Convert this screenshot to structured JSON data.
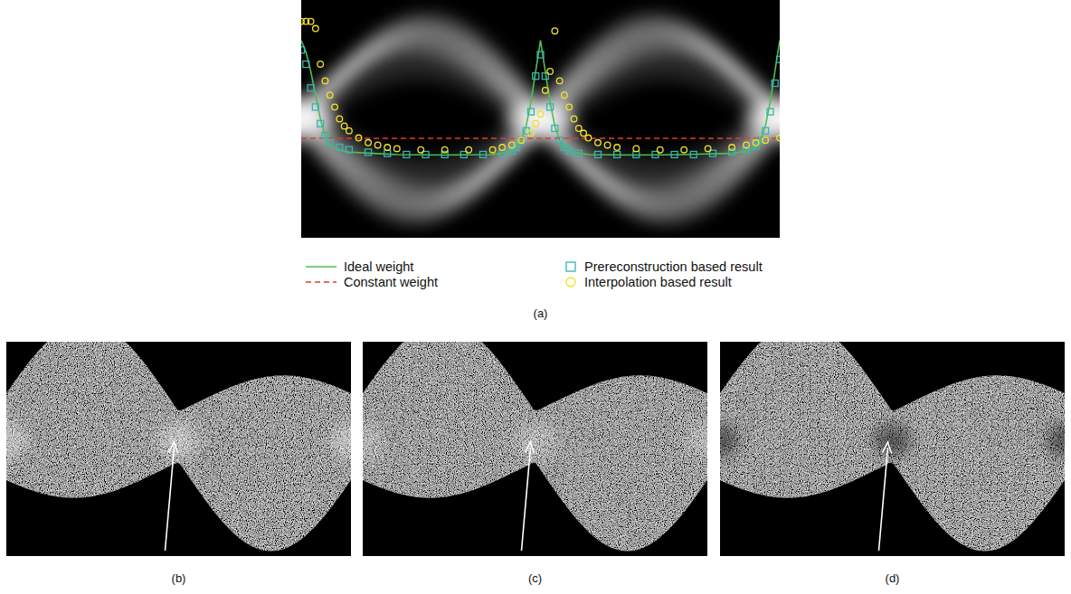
{
  "chart_data": {
    "type": "line",
    "title": "(a)",
    "xlim": [
      0,
      100
    ],
    "ylim": [
      0,
      100
    ],
    "tick_labels": false,
    "grid": false,
    "legend": "bottom",
    "series": [
      {
        "name": "Ideal weight",
        "type": "line",
        "line_style": "solid",
        "color": "#4cc04c",
        "x": [
          0,
          1,
          2,
          3,
          4,
          5,
          6,
          8,
          10,
          15,
          20,
          30,
          40,
          43,
          45,
          46,
          47,
          48,
          49,
          50,
          51,
          52,
          53,
          54,
          55,
          57,
          60,
          70,
          80,
          90,
          93,
          95,
          96,
          97,
          98,
          99,
          100
        ],
        "values": [
          83,
          78,
          70,
          60,
          50,
          43,
          39,
          37,
          36,
          35.5,
          35,
          34.8,
          35,
          36,
          38,
          41,
          47,
          57,
          70,
          83,
          70,
          57,
          47,
          41,
          38,
          36,
          35,
          34.8,
          35,
          35.5,
          36.5,
          38,
          41,
          47,
          57,
          70,
          83
        ]
      },
      {
        "name": "Constant weight",
        "type": "line",
        "line_style": "dashed",
        "color": "#e23a32",
        "x": [
          0,
          100
        ],
        "values": [
          41.8,
          41.8
        ]
      },
      {
        "name": "Prereconstruction based result",
        "type": "scatter",
        "marker": "square",
        "color": "#35b5b8",
        "x": [
          0,
          1,
          2,
          3,
          4,
          5,
          6,
          8,
          10,
          14,
          18,
          22,
          26,
          30,
          34,
          38,
          42,
          44,
          45,
          46,
          47,
          48,
          49,
          50,
          51,
          52,
          53,
          54,
          55,
          56,
          58,
          62,
          66,
          70,
          74,
          78,
          82,
          86,
          90,
          93,
          95,
          96,
          97,
          98,
          99,
          100
        ],
        "values": [
          79,
          73,
          63,
          55,
          48,
          43,
          40,
          38,
          37,
          36,
          35.5,
          35,
          35,
          35,
          35,
          35,
          35.5,
          36.5,
          38,
          41,
          45,
          53,
          68,
          77,
          68,
          55,
          46,
          41,
          38,
          36.5,
          35.5,
          35,
          35,
          35,
          35,
          35,
          35,
          35.5,
          36,
          37,
          38.5,
          41,
          45,
          53,
          65,
          75
        ]
      },
      {
        "name": "Interpolation based result",
        "type": "scatter",
        "marker": "circle",
        "color": "#f2e12a",
        "x": [
          0,
          1,
          2,
          3,
          4,
          5,
          6,
          7,
          8,
          9,
          10,
          12,
          14,
          16,
          18,
          20,
          25,
          30,
          35,
          40,
          42,
          44,
          46,
          48,
          49,
          50,
          51,
          52,
          53,
          54,
          55,
          56,
          57,
          58,
          59,
          60,
          62,
          64,
          66,
          70,
          75,
          80,
          85,
          90,
          93,
          95,
          97,
          100
        ],
        "values": [
          91,
          91,
          91,
          88,
          73,
          66,
          60,
          55,
          50,
          47,
          45,
          42,
          40,
          39,
          38,
          37.5,
          37,
          37,
          37,
          37,
          38,
          39,
          41,
          44,
          48,
          52,
          62,
          70,
          87,
          66,
          60,
          55,
          50,
          46,
          44,
          42,
          40,
          39,
          38,
          37.5,
          37,
          37,
          37.5,
          38,
          39,
          40,
          41,
          42
        ]
      }
    ]
  },
  "figure": {
    "panels": [
      {
        "label": "(b)"
      },
      {
        "label": "(c)"
      },
      {
        "label": "(d)"
      }
    ]
  }
}
